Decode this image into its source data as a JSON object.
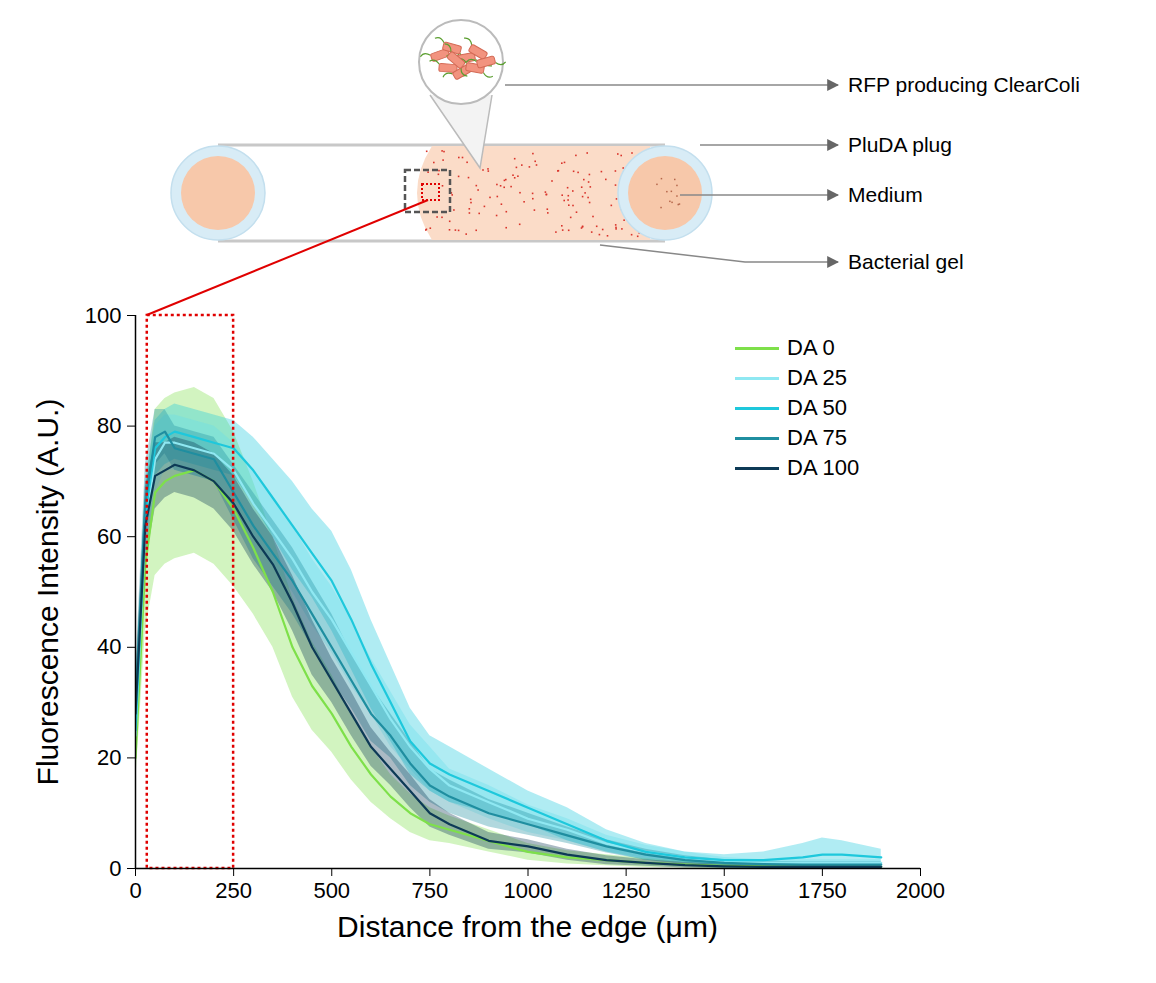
{
  "chart_data": {
    "type": "line",
    "x_label": "Distance from the edge (μm)",
    "y_label": "Fluorescence Intensity (A.U.)",
    "xlim": [
      0,
      2000
    ],
    "xticks": [
      0,
      250,
      500,
      750,
      1000,
      1250,
      1500,
      1750,
      2000
    ],
    "ylim": [
      0,
      100
    ],
    "yticks": [
      0,
      20,
      40,
      60,
      80,
      100
    ],
    "grid": false,
    "legend": "top-right",
    "x": [
      0,
      25,
      50,
      75,
      100,
      150,
      200,
      250,
      300,
      350,
      400,
      450,
      500,
      550,
      600,
      650,
      700,
      750,
      800,
      900,
      1000,
      1100,
      1200,
      1300,
      1400,
      1500,
      1600,
      1700,
      1750,
      1800,
      1900
    ],
    "series": [
      {
        "name": "DA 0",
        "color": "#7ee04a",
        "values": [
          20,
          55,
          68,
          70,
          71,
          72,
          70,
          65,
          58,
          50,
          40,
          33,
          28,
          22,
          17,
          13,
          10,
          8,
          7,
          5,
          3,
          2,
          1.5,
          1,
          0.7,
          0.5,
          0.4,
          0.3,
          0.3,
          0.3,
          0.3
        ],
        "error": [
          5,
          12,
          15,
          15,
          15,
          15,
          15,
          14,
          12,
          10,
          9,
          8,
          7,
          6,
          5,
          4,
          3.5,
          3,
          2.5,
          2,
          1.5,
          1.2,
          1,
          0.8,
          0.6,
          0.5,
          0.4,
          0.3,
          0.3,
          0.3,
          0.3
        ]
      },
      {
        "name": "DA 25",
        "color": "#8fe8f2",
        "values": [
          24,
          62,
          74,
          77,
          77,
          76,
          75,
          72,
          66,
          61,
          56,
          50,
          45,
          39,
          33,
          27,
          22,
          18,
          15,
          12,
          9,
          7,
          4.5,
          3,
          2,
          1.2,
          1,
          1,
          1,
          1,
          1
        ],
        "error": [
          4,
          6,
          6,
          5,
          5,
          5,
          5,
          5,
          6,
          6,
          6,
          6,
          6,
          6,
          5,
          5,
          4,
          4,
          3,
          3,
          2.5,
          2,
          1.5,
          1.2,
          1,
          0.8,
          0.6,
          0.6,
          0.6,
          0.6,
          0.6
        ]
      },
      {
        "name": "DA 50",
        "color": "#1ec8dc",
        "values": [
          25,
          64,
          76,
          78,
          79,
          78,
          77,
          76,
          72,
          67,
          62,
          57,
          52,
          45,
          37,
          30,
          23,
          19,
          17,
          14,
          11,
          8,
          5,
          3,
          2,
          1.5,
          1.5,
          2,
          2.5,
          2.5,
          2
        ],
        "error": [
          4,
          6,
          5,
          5,
          5,
          5,
          5,
          5,
          6,
          7,
          8,
          8,
          9,
          9,
          8,
          7,
          6,
          5,
          5,
          4,
          3,
          3,
          2,
          1.5,
          1,
          1,
          1.5,
          2.5,
          3,
          2.5,
          1.5
        ]
      },
      {
        "name": "DA 75",
        "color": "#1f8ea0",
        "values": [
          30,
          66,
          78,
          79,
          76,
          75,
          74,
          68,
          62,
          57,
          52,
          46,
          40,
          34,
          28,
          24,
          19,
          15,
          13,
          10,
          8,
          6,
          4,
          2.5,
          1.5,
          1,
          0.8,
          0.7,
          0.7,
          0.7,
          0.7
        ],
        "error": [
          5,
          7,
          5,
          4,
          4,
          4,
          4,
          5,
          6,
          6,
          6,
          6,
          6,
          5,
          5,
          4,
          4,
          3,
          3,
          2.5,
          2,
          1.5,
          1.2,
          1,
          0.8,
          0.6,
          0.5,
          0.5,
          0.5,
          0.5,
          0.5
        ]
      },
      {
        "name": "DA 100",
        "color": "#0d3a56",
        "values": [
          28,
          62,
          71,
          72,
          73,
          72,
          70,
          66,
          60,
          55,
          48,
          40,
          34,
          28,
          22,
          18,
          14,
          10,
          8,
          5,
          4,
          2.5,
          1.5,
          1,
          0.6,
          0.4,
          0.3,
          0.3,
          0.3,
          0.3,
          0.3
        ],
        "error": [
          5,
          7,
          6,
          5,
          5,
          5,
          5,
          5,
          5,
          5,
          5,
          5,
          4,
          4,
          3.5,
          3,
          3,
          2.5,
          2,
          1.5,
          1.2,
          1,
          0.8,
          0.6,
          0.5,
          0.4,
          0.3,
          0.3,
          0.3,
          0.3,
          0.3
        ]
      }
    ],
    "highlight_region": {
      "x": [
        30,
        250
      ],
      "y": [
        0,
        100
      ]
    }
  },
  "diagram": {
    "labels": [
      "RFP producing ClearColi",
      "PluDA plug",
      "Medium",
      "Bacterial gel"
    ]
  }
}
